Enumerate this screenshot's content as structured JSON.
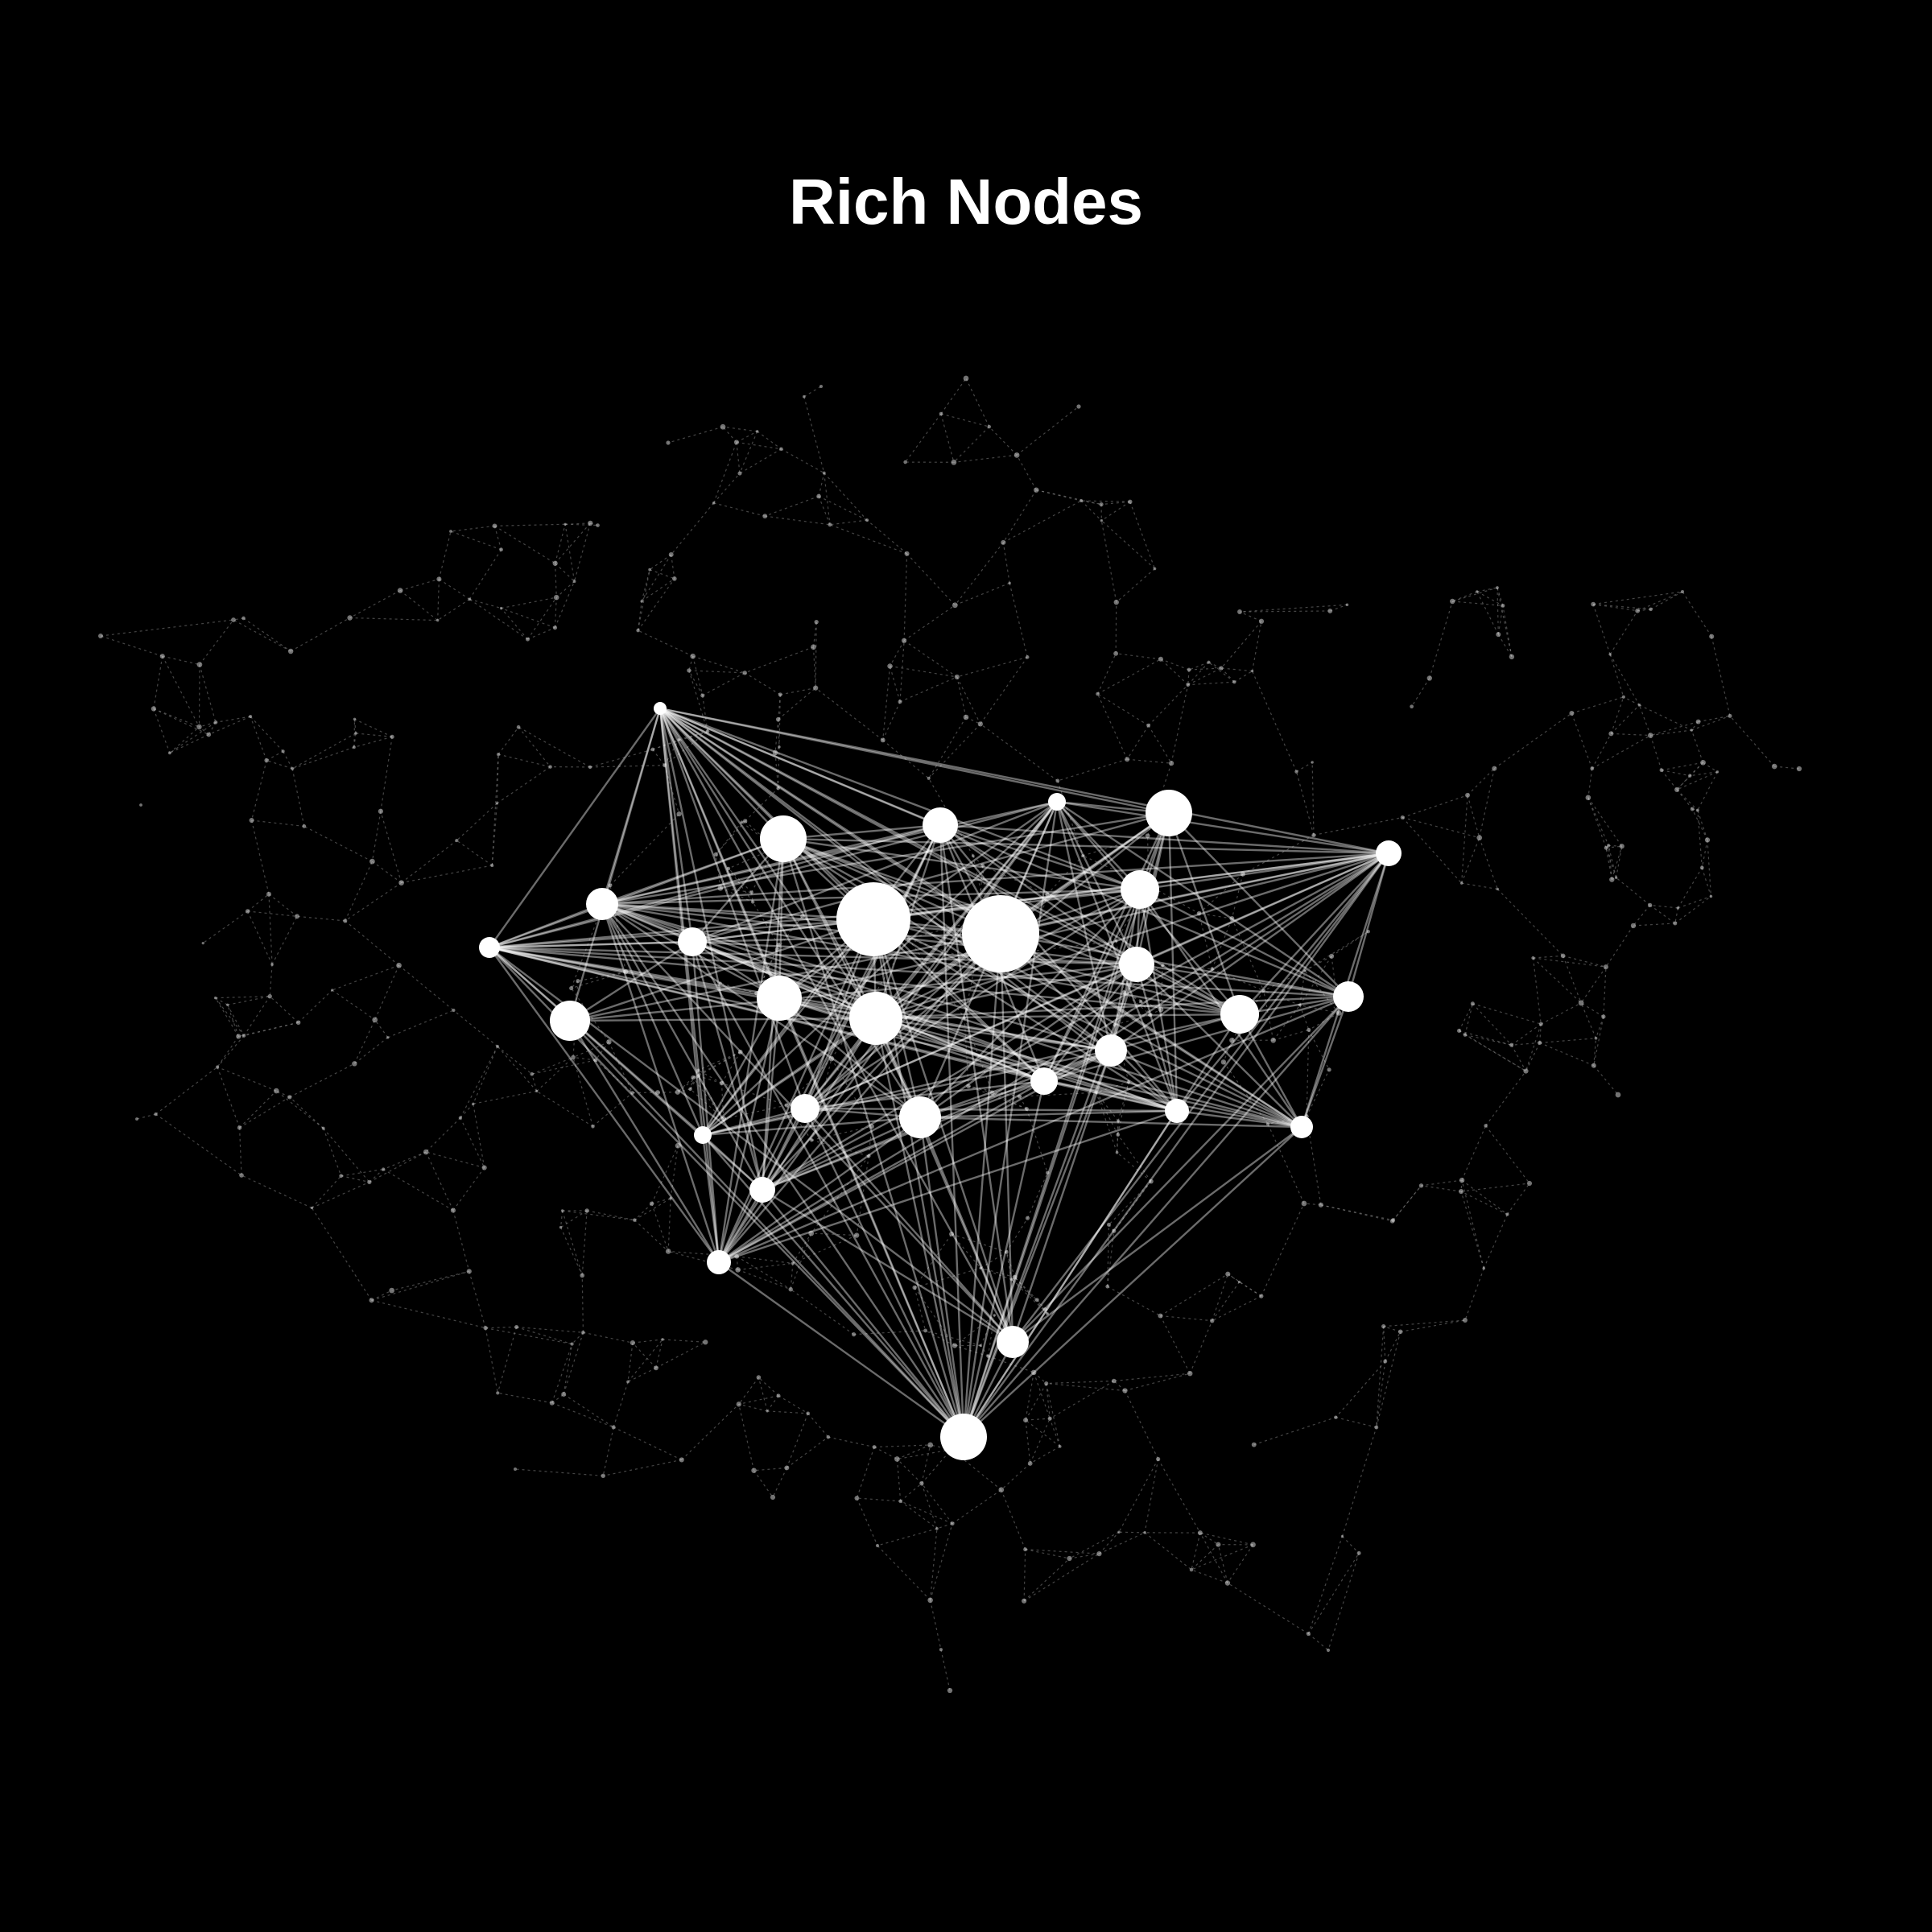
{
  "title": "Rich Nodes",
  "colors": {
    "background": "#000000",
    "rich_node": "#ffffff",
    "rich_edge": "#ffffff",
    "background_edge": "#9a9a9a",
    "background_node": "#d0d0d0"
  },
  "rich_nodes": [
    {
      "id": "n1",
      "weight": 2
    },
    {
      "id": "n2",
      "weight": 5
    },
    {
      "id": "n3",
      "weight": 4
    },
    {
      "id": "n4",
      "weight": 2
    },
    {
      "id": "n5",
      "weight": 5
    },
    {
      "id": "n6",
      "weight": 6
    },
    {
      "id": "n7",
      "weight": 4
    },
    {
      "id": "n8",
      "weight": 3
    },
    {
      "id": "n9",
      "weight": 10
    },
    {
      "id": "n10",
      "weight": 10
    },
    {
      "id": "n11",
      "weight": 4
    },
    {
      "id": "n12",
      "weight": 2
    },
    {
      "id": "n13",
      "weight": 5
    },
    {
      "id": "n14",
      "weight": 5
    },
    {
      "id": "n15",
      "weight": 7
    },
    {
      "id": "n16",
      "weight": 4
    },
    {
      "id": "n17",
      "weight": 6
    },
    {
      "id": "n18",
      "weight": 5
    },
    {
      "id": "n19",
      "weight": 4
    },
    {
      "id": "n20",
      "weight": 4
    },
    {
      "id": "n21",
      "weight": 3
    },
    {
      "id": "n22",
      "weight": 3
    },
    {
      "id": "n23",
      "weight": 2
    },
    {
      "id": "n24",
      "weight": 3
    },
    {
      "id": "n25",
      "weight": 3
    },
    {
      "id": "n26",
      "weight": 4
    },
    {
      "id": "n27",
      "weight": 7
    }
  ]
}
